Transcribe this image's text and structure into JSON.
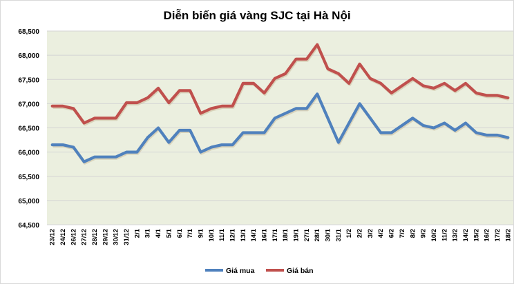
{
  "chart_data": {
    "type": "line",
    "title": "Diễn biến giá vàng SJC tại Hà Nội",
    "xlabel": "",
    "ylabel": "",
    "ylim": [
      64500,
      68500
    ],
    "yticks": [
      "64,500",
      "65,000",
      "65,500",
      "66,000",
      "66,500",
      "67,000",
      "67,500",
      "68,000",
      "68,500"
    ],
    "ytick_values": [
      64500,
      65000,
      65500,
      66000,
      66500,
      67000,
      67500,
      68000,
      68500
    ],
    "grid": true,
    "legend_position": "bottom",
    "background": "#ebefdf",
    "categories": [
      "23/12",
      "24/12",
      "26/12",
      "27/12",
      "28/12",
      "29/12",
      "30/12",
      "31/12",
      "2/1",
      "3/1",
      "4/1",
      "5/1",
      "6/1",
      "7/1",
      "9/1",
      "10/1",
      "11/1",
      "12/1",
      "13/1",
      "14/1",
      "16/1",
      "17/1",
      "18/1",
      "19/1",
      "27/1",
      "28/1",
      "30/1",
      "31/1",
      "1/2",
      "2/2",
      "3/2",
      "4/2",
      "6/2",
      "7/2",
      "8/2",
      "9/2",
      "10/2",
      "11/2",
      "13/2",
      "14/2",
      "15/2",
      "16/2",
      "17/2",
      "18/2"
    ],
    "series": [
      {
        "name": "Giá mua",
        "color": "#4f81bd",
        "values": [
          66150,
          66150,
          66100,
          65800,
          65900,
          65900,
          65900,
          66000,
          66000,
          66300,
          66500,
          66200,
          66450,
          66450,
          66000,
          66100,
          66150,
          66150,
          66400,
          66400,
          66400,
          66700,
          66800,
          66900,
          66900,
          67200,
          66700,
          66200,
          66600,
          67000,
          66700,
          66400,
          66400,
          66550,
          66700,
          66550,
          66500,
          66600,
          66450,
          66600,
          66400,
          66350,
          66350,
          66300
        ]
      },
      {
        "name": "Giá bán",
        "color": "#c0504d",
        "values": [
          66950,
          66950,
          66900,
          66600,
          66700,
          66700,
          66700,
          67020,
          67020,
          67120,
          67320,
          67020,
          67270,
          67270,
          66800,
          66900,
          66950,
          66950,
          67420,
          67420,
          67220,
          67520,
          67620,
          67920,
          67920,
          68220,
          67720,
          67620,
          67420,
          67820,
          67520,
          67420,
          67220,
          67370,
          67520,
          67370,
          67320,
          67420,
          67270,
          67420,
          67220,
          67170,
          67170,
          67120
        ]
      }
    ]
  }
}
